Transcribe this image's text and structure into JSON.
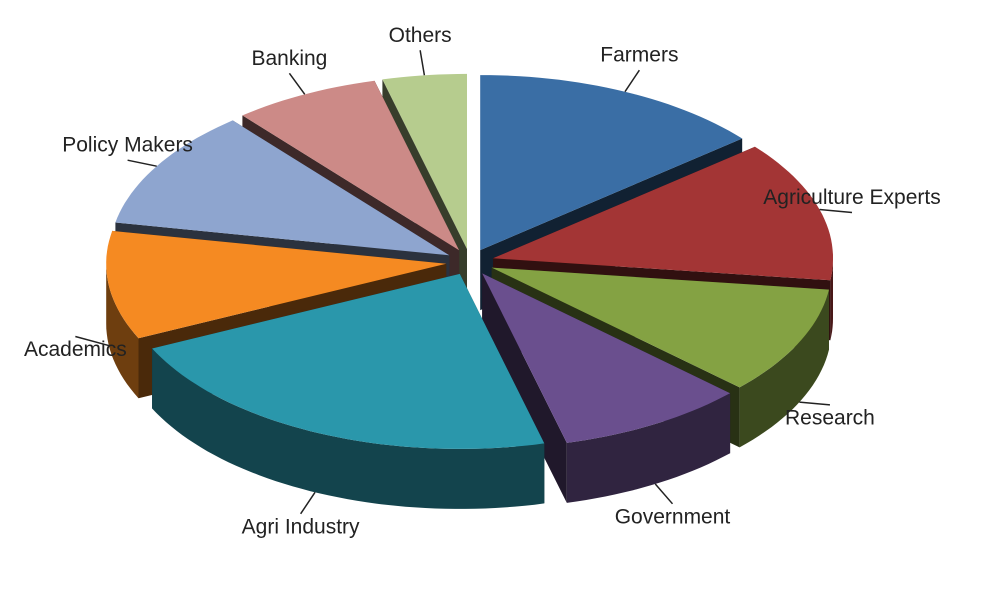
{
  "chart_data": {
    "type": "pie",
    "categories": [
      "Farmers",
      "Agriculture Experts",
      "Research",
      "Government",
      "Agri Industry",
      "Academics",
      "Policy Makers",
      "Banking",
      "Others"
    ],
    "values": [
      14,
      13,
      10,
      9,
      22,
      10,
      11,
      7,
      4
    ],
    "colors": [
      "#3a6ea5",
      "#a33535",
      "#84a243",
      "#6a4f8e",
      "#2a97ab",
      "#f58a22",
      "#8ea5cf",
      "#cc8a87",
      "#b6cc8e"
    ]
  }
}
